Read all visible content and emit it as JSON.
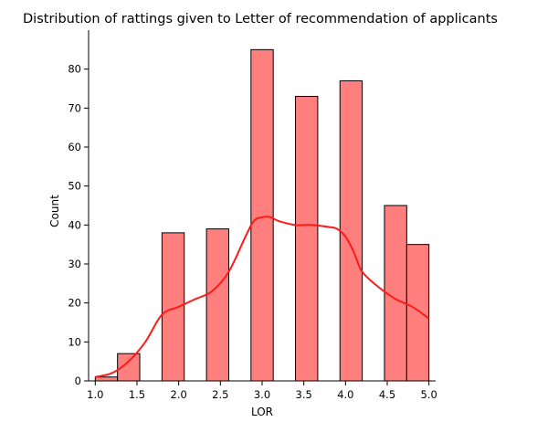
{
  "chart_data": {
    "type": "bar",
    "title": "Distribution of rattings given to Letter of recommendation of applicants",
    "xlabel": "LOR",
    "ylabel": "Count",
    "xlim": [
      0.92,
      5.08
    ],
    "ylim": [
      0,
      90
    ],
    "xticks": [
      1.0,
      1.5,
      2.0,
      2.5,
      3.0,
      3.5,
      4.0,
      4.5,
      5.0
    ],
    "xtick_labels": [
      "1.0",
      "1.5",
      "2.0",
      "2.5",
      "3.0",
      "3.5",
      "4.0",
      "4.5",
      "5.0"
    ],
    "yticks": [
      0,
      10,
      20,
      30,
      40,
      50,
      60,
      70,
      80
    ],
    "ytick_labels": [
      "0",
      "10",
      "20",
      "30",
      "40",
      "50",
      "60",
      "70",
      "80"
    ],
    "bins": [
      {
        "x0": 1.0,
        "x1": 1.2667,
        "count": 1
      },
      {
        "x0": 1.2667,
        "x1": 1.5333,
        "count": 7
      },
      {
        "x0": 1.8,
        "x1": 2.0667,
        "count": 38
      },
      {
        "x0": 2.3333,
        "x1": 2.6,
        "count": 39
      },
      {
        "x0": 2.8667,
        "x1": 3.1333,
        "count": 85
      },
      {
        "x0": 3.4,
        "x1": 3.6667,
        "count": 73
      },
      {
        "x0": 3.9333,
        "x1": 4.2,
        "count": 77
      },
      {
        "x0": 4.4667,
        "x1": 4.7333,
        "count": 45
      },
      {
        "x0": 4.7333,
        "x1": 5.0,
        "count": 35
      }
    ],
    "kde": {
      "x": [
        1.0,
        1.2,
        1.4,
        1.6,
        1.8,
        2.0,
        2.2,
        2.4,
        2.6,
        2.8,
        2.9,
        3.0,
        3.1,
        3.2,
        3.4,
        3.6,
        3.8,
        3.9,
        4.0,
        4.1,
        4.2,
        4.4,
        4.6,
        4.8,
        5.0
      ],
      "y": [
        1,
        2,
        5,
        10,
        17,
        19,
        21,
        23,
        28,
        37,
        41,
        42,
        42,
        41,
        40,
        40,
        39.5,
        39,
        37,
        33,
        28,
        24,
        21,
        19,
        16
      ]
    },
    "bar_color": "#ff7f7f",
    "kde_color": "#ff1a1a",
    "grid": false,
    "legend": "none"
  }
}
